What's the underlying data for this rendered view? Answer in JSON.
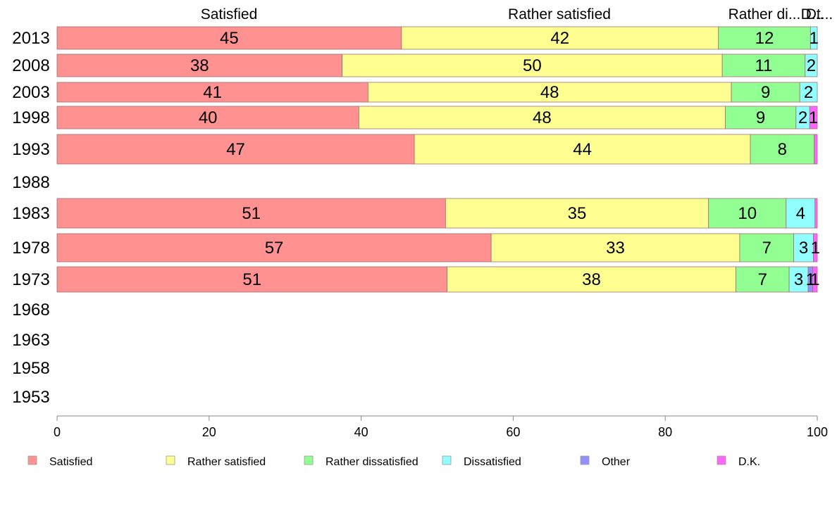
{
  "chart_data": {
    "type": "bar",
    "orientation": "horizontal",
    "stacked": true,
    "title": "",
    "xlabel": "",
    "ylabel": "",
    "xlim": [
      0,
      100
    ],
    "x_ticks": [
      0,
      20,
      40,
      60,
      80,
      100
    ],
    "grid": false,
    "legend_position": "bottom",
    "column_labels": [
      "Satisfied",
      "Rather satisfied",
      "Rather di...",
      "D...",
      "Dt..."
    ],
    "categories": [
      "2013",
      "2008",
      "2003",
      "1998",
      "1993",
      "1988",
      "1983",
      "1978",
      "1973",
      "1968",
      "1963",
      "1958",
      "1953"
    ],
    "series": [
      {
        "name": "Satisfied",
        "color": "#ff9191",
        "values": [
          45.3,
          37.5,
          40.9,
          39.7,
          47.0,
          null,
          51.1,
          57.1,
          51.3,
          null,
          null,
          null,
          null
        ]
      },
      {
        "name": "Rather satisfied",
        "color": "#ffff91",
        "values": [
          41.7,
          50.0,
          47.8,
          48.2,
          44.2,
          null,
          34.6,
          32.7,
          38.0,
          null,
          null,
          null,
          null
        ]
      },
      {
        "name": "Rather dissatisfied",
        "color": "#91ff91",
        "values": [
          12.1,
          10.9,
          9.0,
          9.3,
          8.4,
          null,
          10.2,
          7.1,
          7.0,
          null,
          null,
          null,
          null
        ]
      },
      {
        "name": "Dissatisfied",
        "color": "#91ffff",
        "values": [
          0.9,
          1.6,
          2.3,
          1.8,
          0.0,
          null,
          3.8,
          2.6,
          2.5,
          null,
          null,
          null,
          null
        ]
      },
      {
        "name": "Other",
        "color": "#9191ff",
        "values": [
          0.0,
          0.0,
          0.0,
          0.0,
          0.0,
          null,
          0.0,
          0.0,
          0.6,
          null,
          null,
          null,
          null
        ]
      },
      {
        "name": "D.K.",
        "color": "#ff66ff",
        "values": [
          0.0,
          0.0,
          0.0,
          1.0,
          0.4,
          null,
          0.3,
          0.5,
          0.6,
          null,
          null,
          null,
          null
        ]
      }
    ],
    "data_labels": [
      [
        "45",
        "42",
        "12",
        "1",
        "",
        ""
      ],
      [
        "38",
        "50",
        "11",
        "2",
        "",
        ""
      ],
      [
        "41",
        "48",
        "9",
        "2",
        "",
        ""
      ],
      [
        "40",
        "48",
        "9",
        "2",
        "",
        "1"
      ],
      [
        "47",
        "44",
        "8",
        "",
        "",
        ""
      ],
      [
        "",
        "",
        "",
        "",
        "",
        ""
      ],
      [
        "51",
        "35",
        "10",
        "4",
        "",
        ""
      ],
      [
        "57",
        "33",
        "7",
        "3",
        "",
        "1"
      ],
      [
        "51",
        "38",
        "7",
        "3",
        "1",
        "1"
      ],
      [
        "",
        "",
        "",
        "",
        "",
        ""
      ],
      [
        "",
        "",
        "",
        "",
        "",
        ""
      ],
      [
        "",
        "",
        "",
        "",
        "",
        ""
      ],
      [
        "",
        "",
        "",
        "",
        "",
        ""
      ]
    ]
  }
}
